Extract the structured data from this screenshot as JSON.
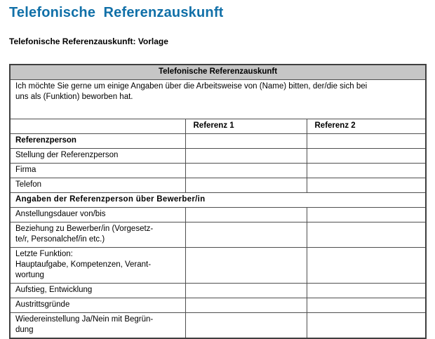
{
  "page": {
    "title": "Telefonische Referenzauskunft",
    "subtitle": "Telefonische Referenzauskunft: Vorlage"
  },
  "colors": {
    "title_blue": "#1170A8",
    "table_title_bar_gray": "#C6C6C6",
    "table_border_gray": "#4F4F4F",
    "text_black": "#000000"
  },
  "form": {
    "title": "Telefonische Referenzauskunft",
    "intro": "Ich möchte Sie gerne um einige Angaben über die Arbeitsweise von (Name) bitten, der/die sich bei\nuns als (Funktion) beworben hat.",
    "column_headers": {
      "blank": "",
      "ref1": "Referenz 1",
      "ref2": "Referenz 2"
    },
    "rows": [
      {
        "label": "Referenzperson",
        "bold": true
      },
      {
        "label": "Stellung der Referenzperson"
      },
      {
        "label": "Firma"
      },
      {
        "label": "Telefon"
      },
      {
        "label": "Angaben der Referenzperson über Bewerber/in",
        "bold": true,
        "section": true
      },
      {
        "label": "Anstellungsdauer von/bis"
      },
      {
        "label": "Beziehung zu Bewerber/in (Vorgesetz-\nte/r, Personalchef/in etc.)"
      },
      {
        "label": "Letzte Funktion:\nHauptaufgabe, Kompetenzen, Verant-\nwortung"
      },
      {
        "label": "Aufstieg, Entwicklung"
      },
      {
        "label": "Austrittsgründe"
      },
      {
        "label": "Wiedereinstellung Ja/Nein mit Begrün-\ndung"
      }
    ],
    "values": {
      "referenz1": "",
      "referenz2": ""
    }
  }
}
